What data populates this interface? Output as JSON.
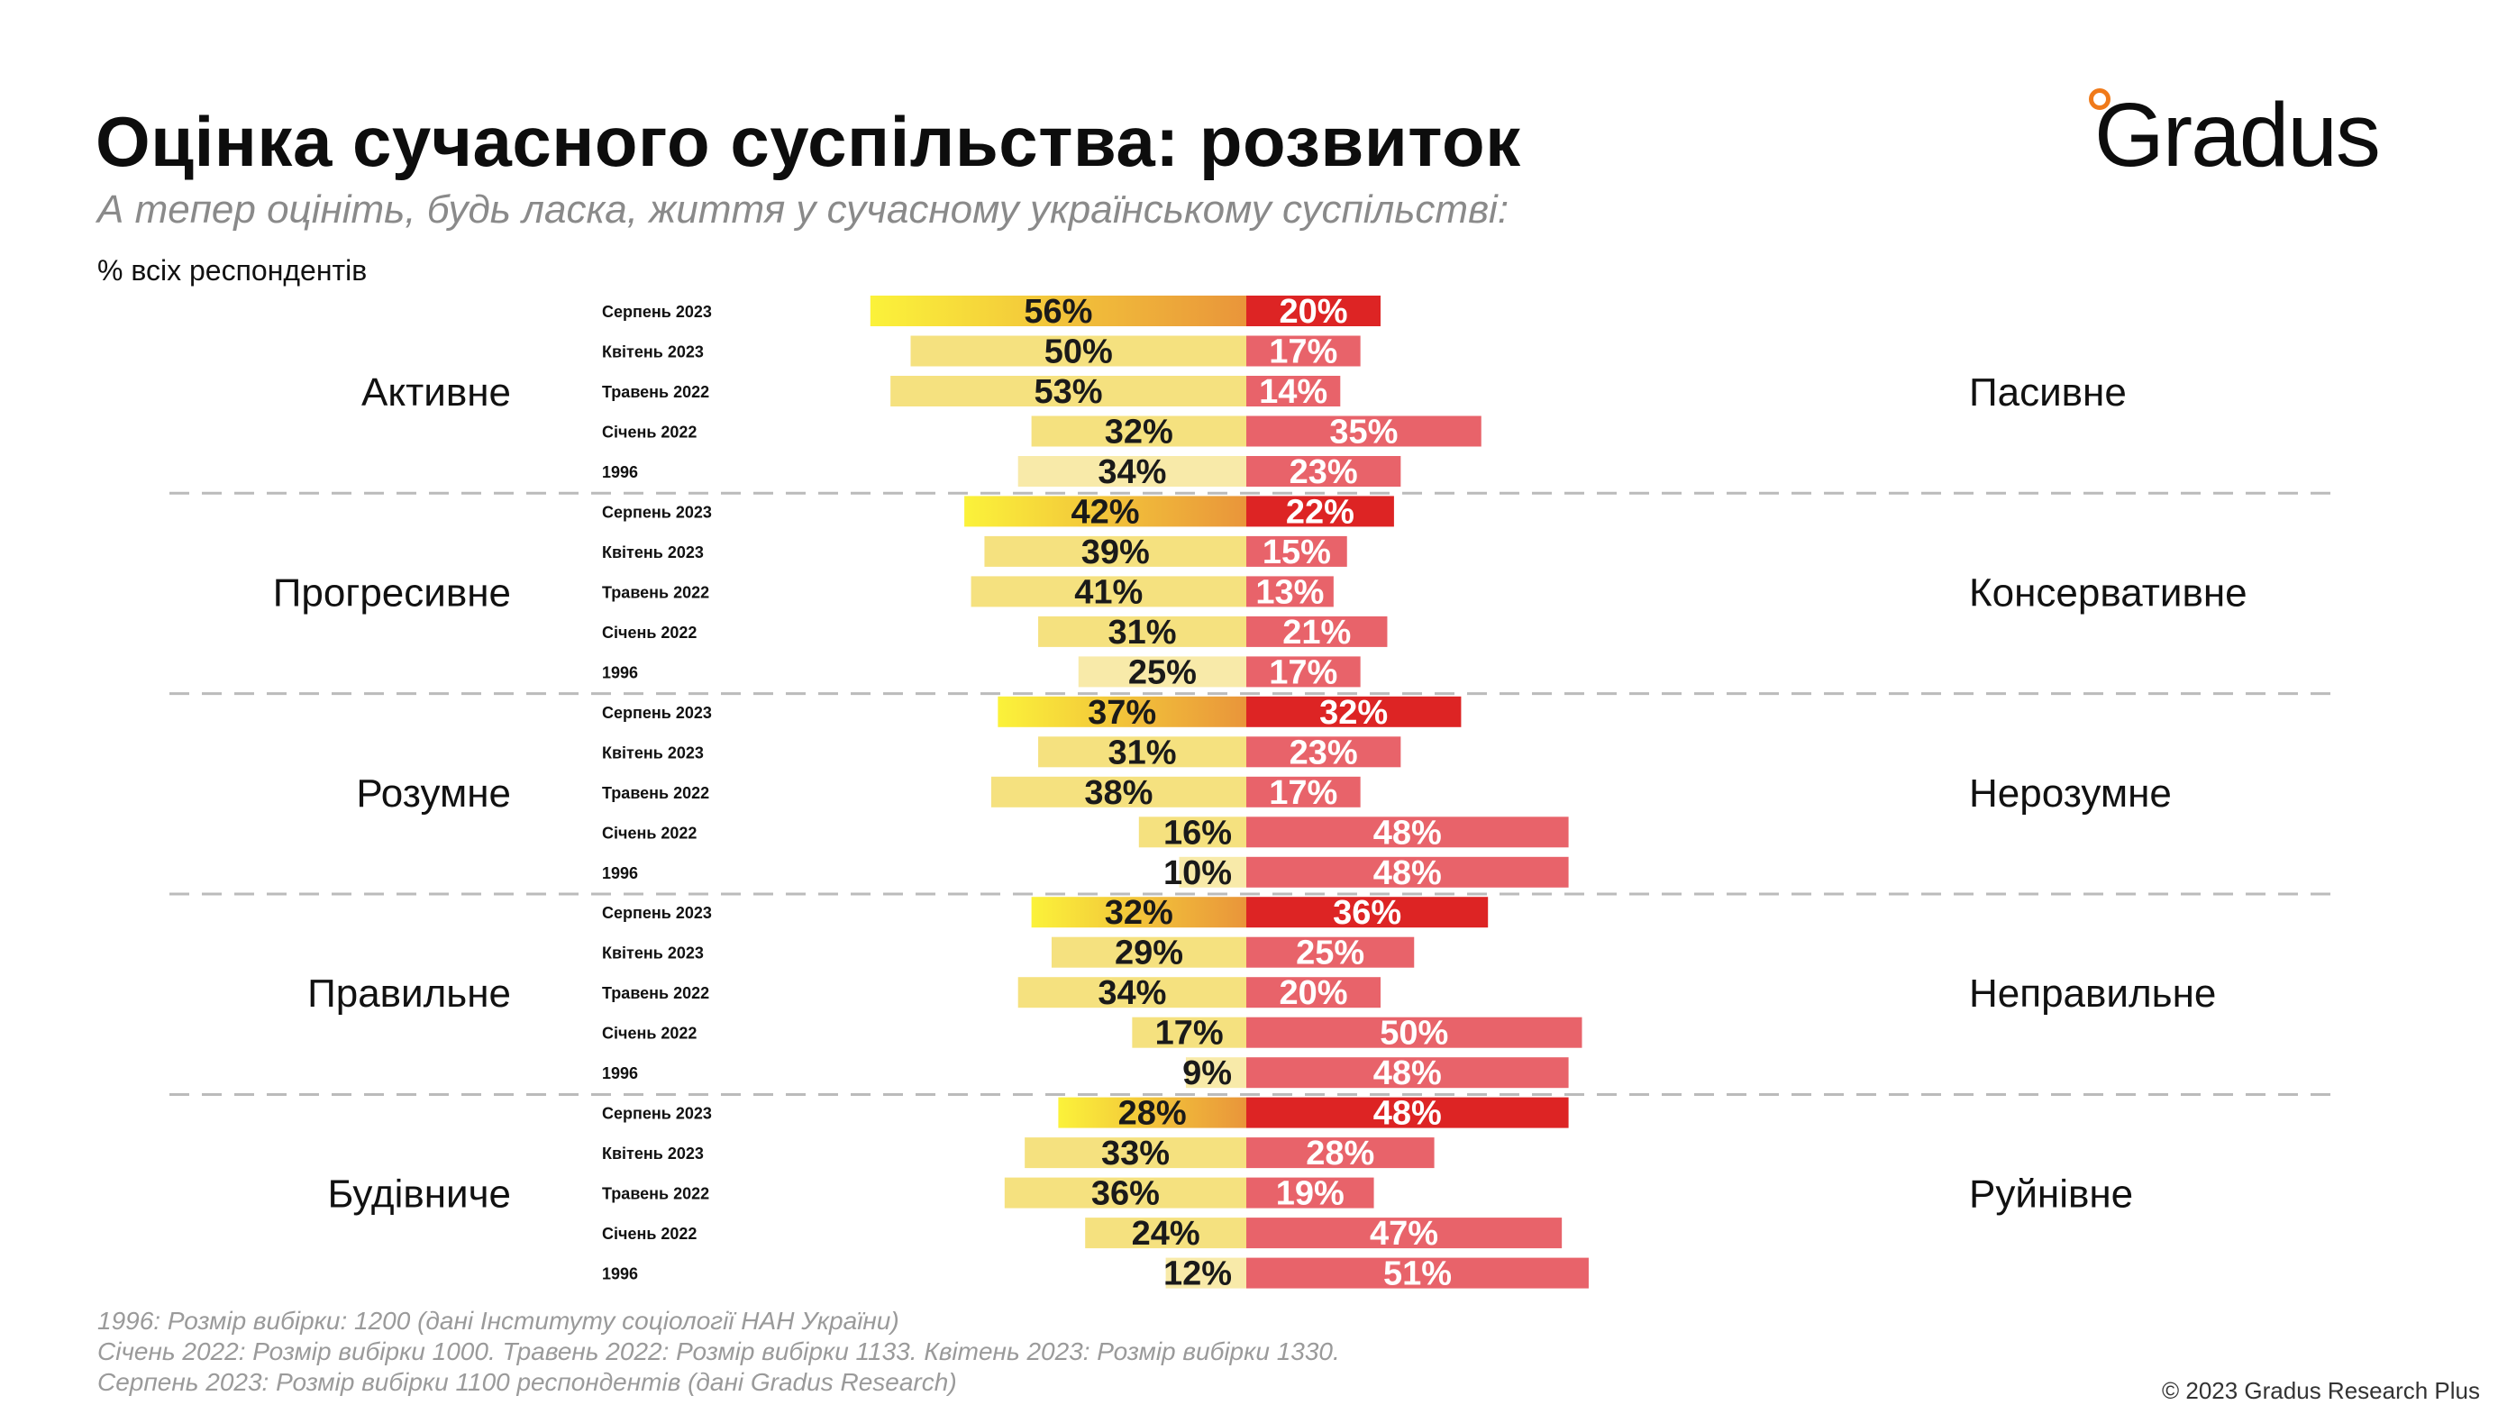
{
  "header": {
    "title": "Оцінка сучасного суспільства: розвиток",
    "subtitle": "А тепер оцініть, будь ласка, життя у сучасному українському суспільстві:",
    "unit_note": "% всіх респондентів",
    "logo_text": "Gradus"
  },
  "chart_data": {
    "type": "bar",
    "orientation": "horizontal-diverging",
    "periods": [
      "Серпень 2023",
      "Квітень 2023",
      "Травень 2022",
      "Січень 2022",
      "1996"
    ],
    "groups": [
      {
        "left_label": "Активне",
        "right_label": "Пасивне",
        "left_values": [
          56,
          50,
          53,
          32,
          34
        ],
        "right_values": [
          20,
          17,
          14,
          35,
          23
        ]
      },
      {
        "left_label": "Прогресивне",
        "right_label": "Консервативне",
        "left_values": [
          42,
          39,
          41,
          31,
          25
        ],
        "right_values": [
          22,
          15,
          13,
          21,
          17
        ]
      },
      {
        "left_label": "Розумне",
        "right_label": "Нерозумне",
        "left_values": [
          37,
          31,
          38,
          16,
          10
        ],
        "right_values": [
          32,
          23,
          17,
          48,
          48
        ]
      },
      {
        "left_label": "Правильне",
        "right_label": "Неправильне",
        "left_values": [
          32,
          29,
          34,
          17,
          9
        ],
        "right_values": [
          36,
          25,
          20,
          50,
          48
        ]
      },
      {
        "left_label": "Будівниче",
        "right_label": "Руйнівне",
        "left_values": [
          28,
          33,
          36,
          24,
          12
        ],
        "right_values": [
          48,
          28,
          19,
          47,
          51
        ]
      }
    ],
    "value_suffix": "%",
    "colors": {
      "left_latest_gradient": [
        "#fbf23a",
        "#e9953a"
      ],
      "left_regular": "#f5e17f",
      "left_1996": "#f8eaa9",
      "right_latest": "#dd2424",
      "right_regular": "#e8636a",
      "separator": "#bbbbbb"
    }
  },
  "footer": {
    "notes": [
      "1996: Розмір вибірки: 1200 (дані Інституту соціології НАН України)",
      "Січень 2022: Розмір вибірки 1000. Травень 2022: Розмір вибірки 1133. Квітень 2023: Розмір вибірки 1330.",
      "Серпень 2023: Розмір вибірки 1100 респондентів (дані Gradus Research)"
    ],
    "copyright": "© 2023 Gradus Research Plus"
  }
}
